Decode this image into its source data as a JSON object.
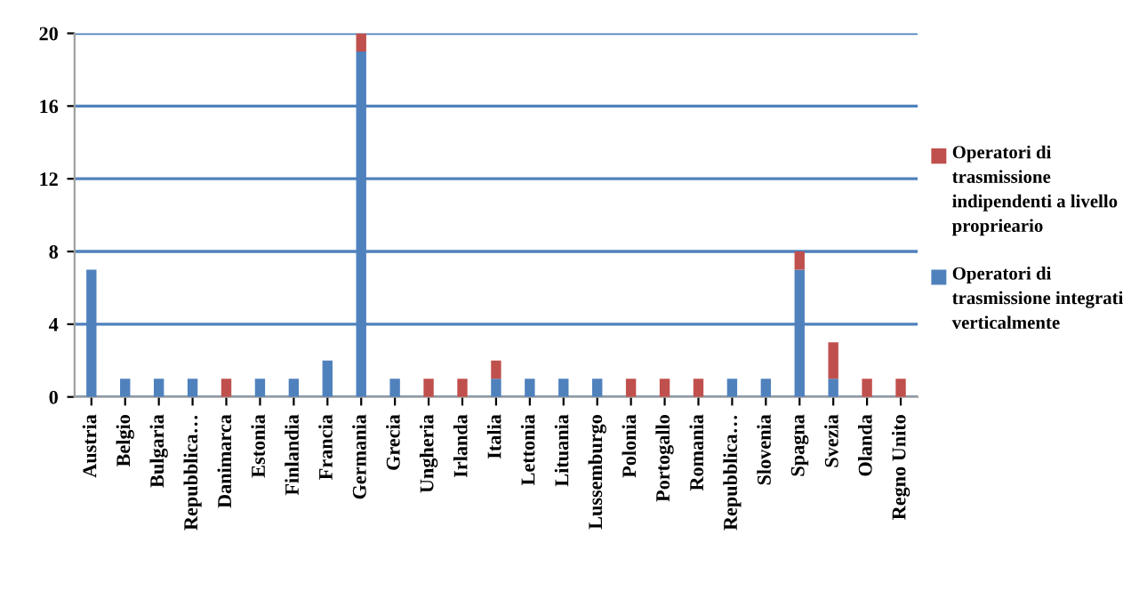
{
  "chart_data": {
    "type": "bar",
    "stacked": true,
    "categories": [
      "Austria",
      "Belgio",
      "Bulgaria",
      "Repubblica…",
      "Danimarca",
      "Estonia",
      "Finlandia",
      "Francia",
      "Germania",
      "Grecia",
      "Ungheria",
      "Irlanda",
      "Italia",
      "Lettonia",
      "Lituania",
      "Lussemburgo",
      "Polonia",
      "Portogallo",
      "Romania",
      "Repubblica…",
      "Slovenia",
      "Spagna",
      "Svezia",
      "Olanda",
      "Regno Unito"
    ],
    "series": [
      {
        "name": "Operatori di trasmissione integrati verticalmente",
        "color": "#4f81bd",
        "values": [
          7,
          1,
          1,
          1,
          0,
          1,
          1,
          2,
          19,
          1,
          0,
          0,
          1,
          1,
          1,
          1,
          0,
          0,
          0,
          1,
          1,
          7,
          1,
          0,
          0
        ]
      },
      {
        "name": "Operatori di trasmissione indipendenti a livello proprieario",
        "color": "#c0504d",
        "values": [
          0,
          0,
          0,
          0,
          1,
          0,
          0,
          0,
          1,
          0,
          1,
          1,
          1,
          0,
          0,
          0,
          1,
          1,
          1,
          0,
          0,
          1,
          2,
          1,
          1
        ]
      }
    ],
    "ylim": [
      0,
      20
    ],
    "yticks": [
      0,
      4,
      8,
      12,
      16,
      20
    ],
    "grid": "y",
    "legend": "right"
  }
}
